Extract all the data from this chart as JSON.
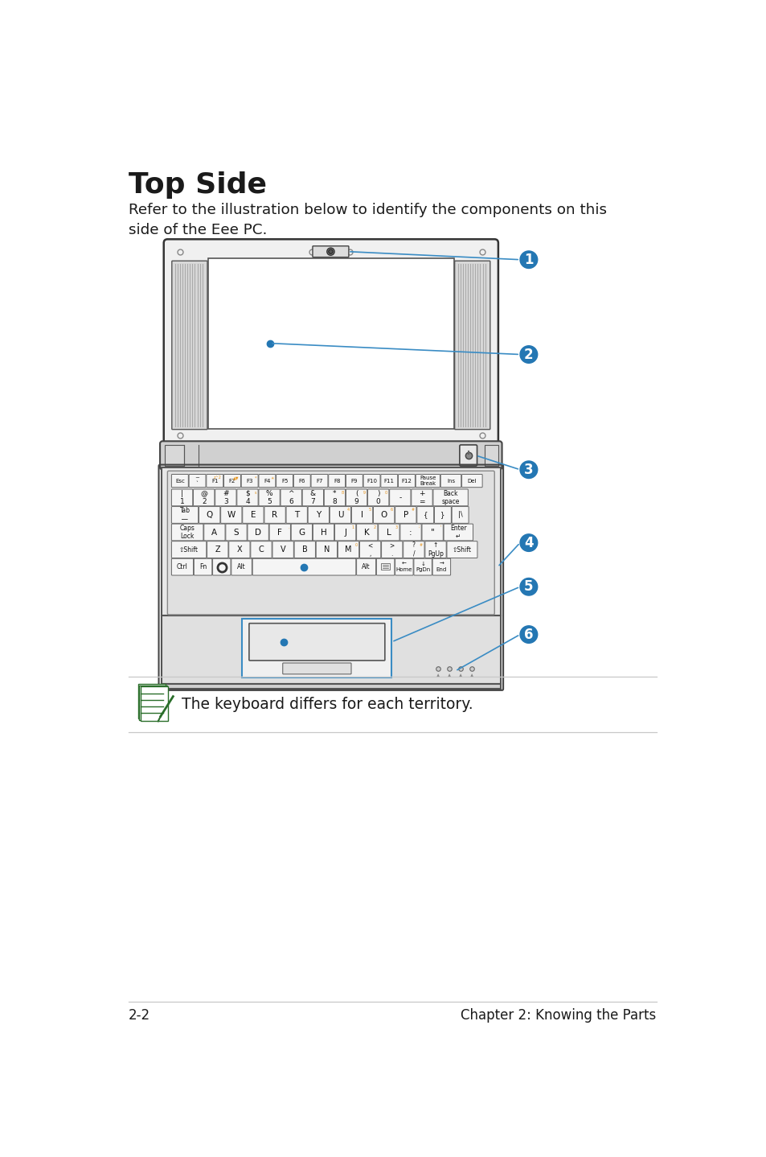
{
  "title": "Top Side",
  "subtitle": "Refer to the illustration below to identify the components on this\nside of the Eee PC.",
  "note_text": "The keyboard differs for each territory.",
  "footer_left": "2-2",
  "footer_right": "Chapter 2: Knowing the Parts",
  "bg_color": "#ffffff",
  "blue_color": "#1a6496",
  "label_bg": "#2477b3",
  "label_text": "#ffffff",
  "ann_color": "#3a8cc4",
  "dark_color": "#1a1a1a",
  "gray_color": "#888888",
  "light_gray": "#cccccc",
  "key_bg": "#f8f8f8",
  "orange_key": "#e6931a",
  "lid_outer_color": "#333333",
  "lid_fill": "#f5f5f5",
  "screen_fill": "#ffffff",
  "speaker_fill": "#dddddd",
  "hinge_fill": "#cccccc",
  "kb_fill": "#e8e8e8",
  "key_edge": "#777777"
}
